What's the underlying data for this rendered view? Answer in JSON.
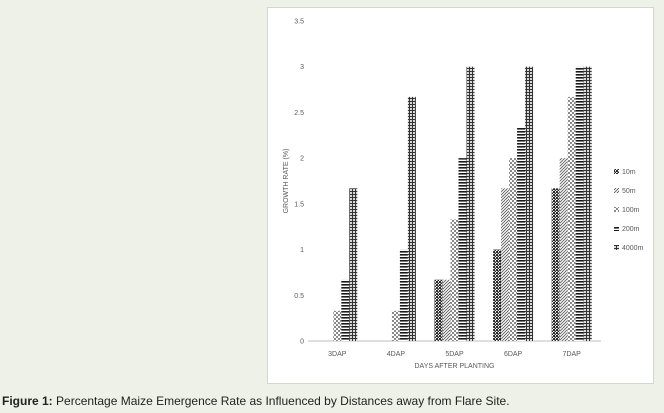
{
  "caption": {
    "label": "Figure 1:",
    "text": "Percentage Maize Emergence Rate as Influenced by Distances away from Flare Site."
  },
  "chart_data": {
    "type": "bar",
    "categories": [
      "3DAP",
      "4DAP",
      "5DAP",
      "6DAP",
      "7DAP"
    ],
    "series": [
      {
        "name": "10m",
        "pattern": "dense-dots",
        "values": [
          0,
          0,
          0.67,
          1.0,
          1.67
        ]
      },
      {
        "name": "50m",
        "pattern": "diagonal",
        "values": [
          0,
          0,
          0.67,
          1.67,
          2.0
        ]
      },
      {
        "name": "100m",
        "pattern": "checker",
        "values": [
          0.33,
          0.33,
          1.33,
          2.0,
          2.67
        ]
      },
      {
        "name": "200m",
        "pattern": "horizontal",
        "values": [
          0.67,
          1.0,
          2.0,
          2.33,
          3.0
        ]
      },
      {
        "name": "4000m",
        "pattern": "grid",
        "values": [
          1.67,
          2.67,
          3.0,
          3.0,
          3.0
        ]
      }
    ],
    "yticks": [
      "0",
      "0.5",
      "1",
      "1.5",
      "2",
      "2.5",
      "3",
      "3.5"
    ],
    "ylim": [
      0,
      3.5
    ],
    "xlabel": "DAYS AFTER PLANTING",
    "ylabel": "GROWTH RATE (%)",
    "legend_position": "right",
    "grid": false
  }
}
